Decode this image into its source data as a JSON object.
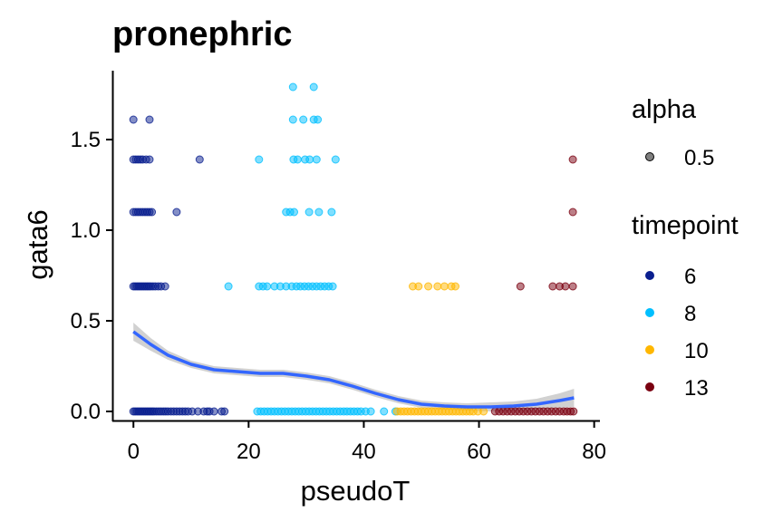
{
  "chart_data": {
    "type": "scatter",
    "title": "pronephric",
    "xlabel": "pseudoT",
    "ylabel": "gata6",
    "xlim": [
      -3.5,
      81
    ],
    "ylim": [
      -0.05,
      1.88
    ],
    "x_ticks": [
      0,
      20,
      40,
      60,
      80
    ],
    "x_tick_labels": [
      "0",
      "20",
      "40",
      "60",
      "80"
    ],
    "y_ticks": [
      0.0,
      0.5,
      1.0,
      1.5
    ],
    "y_tick_labels": [
      "0.0",
      "0.5",
      "1.0",
      "1.5"
    ],
    "grid": false,
    "point_alpha": 0.5,
    "legend": {
      "position": "right",
      "alpha": {
        "title": "alpha",
        "entries": [
          "0.5"
        ]
      },
      "timepoint": {
        "title": "timepoint",
        "entries": [
          "6",
          "8",
          "10",
          "13"
        ]
      }
    },
    "colors": {
      "6": "#0a1f8f",
      "8": "#00bfff",
      "10": "#ffb700",
      "13": "#7a0010",
      "smooth": "#3366ff",
      "ribbon": "#bdbdbd"
    },
    "series": [
      {
        "name": "6",
        "color": "#0a1f8f",
        "points": [
          [
            0,
            0
          ],
          [
            0.3,
            0
          ],
          [
            0.6,
            0
          ],
          [
            0.9,
            0
          ],
          [
            1.2,
            0
          ],
          [
            1.5,
            0
          ],
          [
            1.8,
            0
          ],
          [
            2.1,
            0
          ],
          [
            2.4,
            0
          ],
          [
            2.7,
            0
          ],
          [
            3,
            0
          ],
          [
            3.3,
            0
          ],
          [
            3.6,
            0
          ],
          [
            4,
            0
          ],
          [
            4.4,
            0
          ],
          [
            4.8,
            0
          ],
          [
            5.2,
            0
          ],
          [
            5.6,
            0
          ],
          [
            6,
            0
          ],
          [
            6.5,
            0
          ],
          [
            7,
            0
          ],
          [
            7.5,
            0
          ],
          [
            8,
            0
          ],
          [
            8.5,
            0
          ],
          [
            9,
            0
          ],
          [
            9.5,
            0
          ],
          [
            10.2,
            0
          ],
          [
            11.2,
            0
          ],
          [
            12.2,
            0
          ],
          [
            12.8,
            0
          ],
          [
            13.2,
            0
          ],
          [
            14,
            0
          ],
          [
            15.3,
            0
          ],
          [
            15.8,
            0
          ],
          [
            0,
            0.69
          ],
          [
            0.3,
            0.69
          ],
          [
            0.6,
            0.69
          ],
          [
            0.9,
            0.69
          ],
          [
            1.2,
            0.69
          ],
          [
            1.5,
            0.69
          ],
          [
            1.8,
            0.69
          ],
          [
            2.1,
            0.69
          ],
          [
            2.4,
            0.69
          ],
          [
            2.7,
            0.69
          ],
          [
            3,
            0.69
          ],
          [
            3.4,
            0.69
          ],
          [
            3.8,
            0.69
          ],
          [
            4.3,
            0.69
          ],
          [
            4.8,
            0.69
          ],
          [
            5.5,
            0.69
          ],
          [
            0,
            1.1
          ],
          [
            0.4,
            1.1
          ],
          [
            0.8,
            1.1
          ],
          [
            1.2,
            1.1
          ],
          [
            1.6,
            1.1
          ],
          [
            2,
            1.1
          ],
          [
            2.4,
            1.1
          ],
          [
            2.8,
            1.1
          ],
          [
            3.2,
            1.1
          ],
          [
            7.5,
            1.1
          ],
          [
            0,
            1.39
          ],
          [
            0.4,
            1.39
          ],
          [
            0.8,
            1.39
          ],
          [
            1.2,
            1.39
          ],
          [
            1.6,
            1.39
          ],
          [
            2.2,
            1.39
          ],
          [
            2.8,
            1.39
          ],
          [
            11.5,
            1.39
          ],
          [
            0,
            1.61
          ],
          [
            2.8,
            1.61
          ]
        ]
      },
      {
        "name": "8",
        "color": "#00bfff",
        "points": [
          [
            21.5,
            0
          ],
          [
            22.1,
            0
          ],
          [
            22.7,
            0
          ],
          [
            23.3,
            0
          ],
          [
            23.9,
            0
          ],
          [
            24.5,
            0
          ],
          [
            25.1,
            0
          ],
          [
            25.7,
            0
          ],
          [
            26.3,
            0
          ],
          [
            26.9,
            0
          ],
          [
            27.5,
            0
          ],
          [
            28.1,
            0
          ],
          [
            28.7,
            0
          ],
          [
            29.3,
            0
          ],
          [
            29.9,
            0
          ],
          [
            30.5,
            0
          ],
          [
            31.1,
            0
          ],
          [
            31.7,
            0
          ],
          [
            32.3,
            0
          ],
          [
            32.9,
            0
          ],
          [
            33.5,
            0
          ],
          [
            34.1,
            0
          ],
          [
            34.7,
            0
          ],
          [
            35.3,
            0
          ],
          [
            35.9,
            0
          ],
          [
            36.5,
            0
          ],
          [
            37.1,
            0
          ],
          [
            37.7,
            0
          ],
          [
            38.3,
            0
          ],
          [
            38.9,
            0
          ],
          [
            39.5,
            0
          ],
          [
            40.3,
            0
          ],
          [
            41.2,
            0
          ],
          [
            43.5,
            0
          ],
          [
            45.5,
            0
          ],
          [
            16.5,
            0.69
          ],
          [
            21.8,
            0.69
          ],
          [
            22.5,
            0.69
          ],
          [
            23.2,
            0.69
          ],
          [
            24.5,
            0.69
          ],
          [
            25.5,
            0.69
          ],
          [
            26.5,
            0.69
          ],
          [
            27.5,
            0.69
          ],
          [
            28.3,
            0.69
          ],
          [
            29,
            0.69
          ],
          [
            29.7,
            0.69
          ],
          [
            30.4,
            0.69
          ],
          [
            31.1,
            0.69
          ],
          [
            31.8,
            0.69
          ],
          [
            32.5,
            0.69
          ],
          [
            33.2,
            0.69
          ],
          [
            33.9,
            0.69
          ],
          [
            34.6,
            0.69
          ],
          [
            26.5,
            1.1
          ],
          [
            27.2,
            1.1
          ],
          [
            27.9,
            1.1
          ],
          [
            30.5,
            1.1
          ],
          [
            32.2,
            1.1
          ],
          [
            34.4,
            1.1
          ],
          [
            21.8,
            1.39
          ],
          [
            27.8,
            1.39
          ],
          [
            28.5,
            1.39
          ],
          [
            29.8,
            1.39
          ],
          [
            30.6,
            1.39
          ],
          [
            31.8,
            1.39
          ],
          [
            35.1,
            1.39
          ],
          [
            27.7,
            1.61
          ],
          [
            29.5,
            1.61
          ],
          [
            31.3,
            1.61
          ],
          [
            32,
            1.61
          ],
          [
            27.7,
            1.79
          ],
          [
            31.3,
            1.79
          ]
        ]
      },
      {
        "name": "10",
        "color": "#ffb700",
        "points": [
          [
            45.8,
            0
          ],
          [
            46.4,
            0
          ],
          [
            47,
            0
          ],
          [
            47.6,
            0
          ],
          [
            48.2,
            0
          ],
          [
            48.8,
            0
          ],
          [
            49.4,
            0
          ],
          [
            50,
            0
          ],
          [
            50.6,
            0
          ],
          [
            51.2,
            0
          ],
          [
            51.8,
            0
          ],
          [
            52.4,
            0
          ],
          [
            53,
            0
          ],
          [
            53.6,
            0
          ],
          [
            54.2,
            0
          ],
          [
            54.8,
            0
          ],
          [
            55.4,
            0
          ],
          [
            56,
            0
          ],
          [
            56.6,
            0
          ],
          [
            57.2,
            0
          ],
          [
            57.8,
            0
          ],
          [
            58.4,
            0
          ],
          [
            59,
            0
          ],
          [
            59.8,
            0
          ],
          [
            60.8,
            0
          ],
          [
            48.5,
            0.69
          ],
          [
            49.5,
            0.69
          ],
          [
            51.2,
            0.69
          ],
          [
            52.8,
            0.69
          ],
          [
            54,
            0.69
          ],
          [
            55.2,
            0.69
          ],
          [
            55.9,
            0.69
          ]
        ]
      },
      {
        "name": "13",
        "color": "#7a0010",
        "points": [
          [
            62.8,
            0
          ],
          [
            63.5,
            0
          ],
          [
            64.2,
            0
          ],
          [
            64.9,
            0
          ],
          [
            65.6,
            0
          ],
          [
            66.3,
            0
          ],
          [
            67,
            0
          ],
          [
            67.7,
            0
          ],
          [
            68.4,
            0
          ],
          [
            69.1,
            0
          ],
          [
            69.8,
            0
          ],
          [
            70.5,
            0
          ],
          [
            71.2,
            0
          ],
          [
            71.9,
            0
          ],
          [
            72.6,
            0
          ],
          [
            73.3,
            0
          ],
          [
            74,
            0
          ],
          [
            74.7,
            0
          ],
          [
            75.3,
            0
          ],
          [
            75.9,
            0
          ],
          [
            76.4,
            0
          ],
          [
            67.2,
            0.69
          ],
          [
            72.8,
            0.69
          ],
          [
            74,
            0.69
          ],
          [
            75,
            0.69
          ],
          [
            76.3,
            0.69
          ],
          [
            76.3,
            1.1
          ],
          [
            76.3,
            1.39
          ]
        ]
      }
    ],
    "smooth": {
      "x": [
        0,
        3,
        6,
        10,
        14,
        18,
        22,
        26,
        30,
        34,
        38,
        42,
        46,
        50,
        54,
        58,
        62,
        66,
        70,
        74,
        76.5
      ],
      "y": [
        0.44,
        0.37,
        0.31,
        0.26,
        0.23,
        0.22,
        0.21,
        0.21,
        0.195,
        0.175,
        0.14,
        0.1,
        0.065,
        0.04,
        0.03,
        0.025,
        0.025,
        0.03,
        0.04,
        0.06,
        0.075
      ],
      "se": [
        0.05,
        0.035,
        0.025,
        0.02,
        0.02,
        0.02,
        0.02,
        0.02,
        0.02,
        0.02,
        0.02,
        0.02,
        0.02,
        0.02,
        0.02,
        0.02,
        0.025,
        0.025,
        0.03,
        0.04,
        0.05
      ]
    }
  }
}
